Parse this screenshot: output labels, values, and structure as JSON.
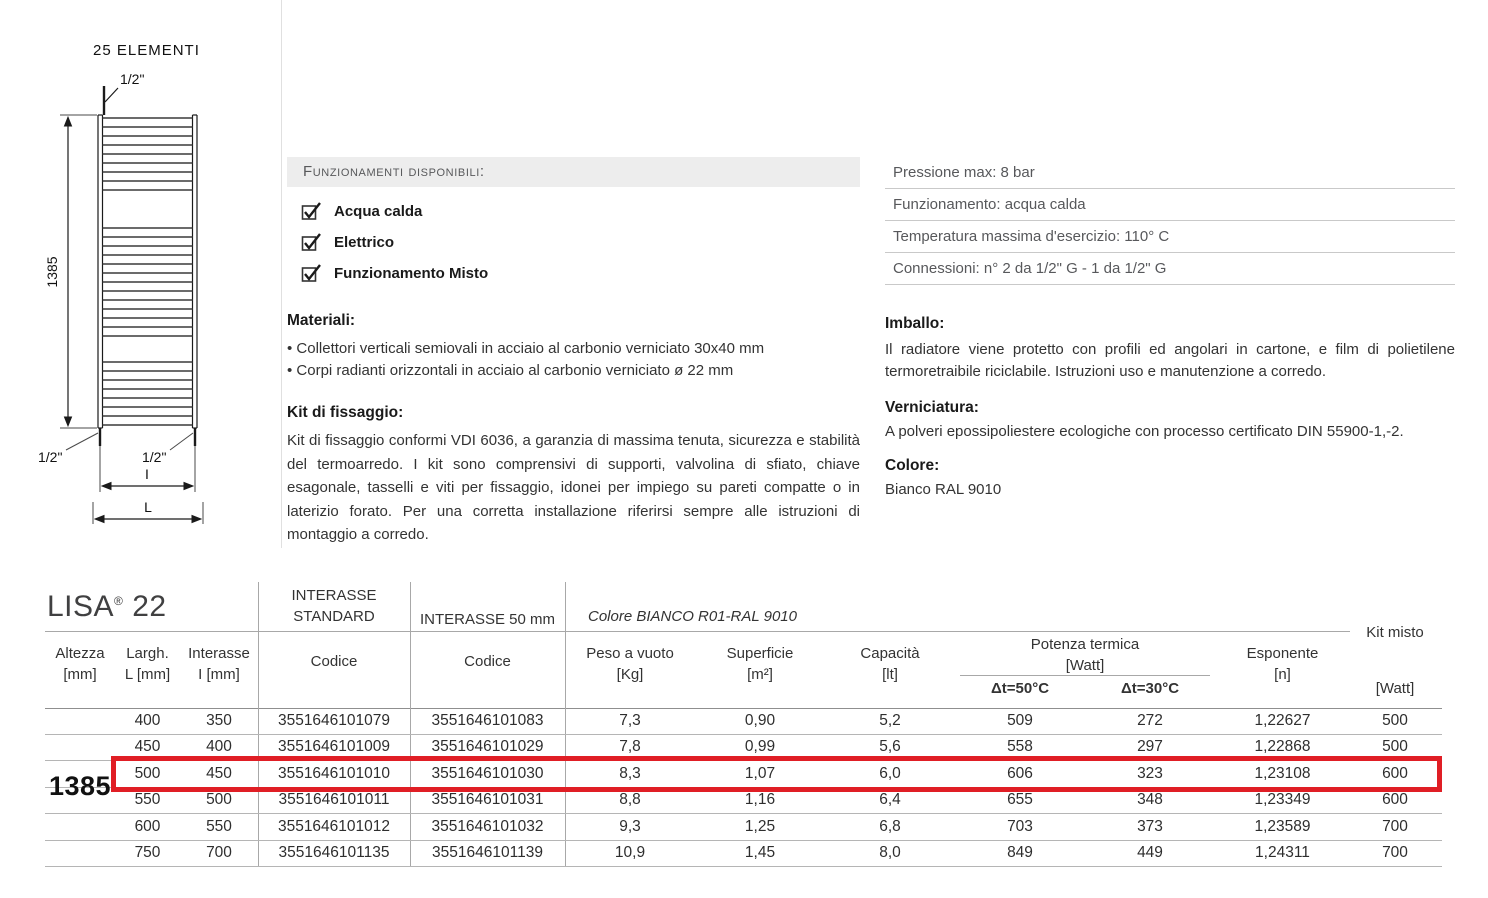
{
  "drawing": {
    "elements_label": "25 ELEMENTI",
    "conn_top": "1/2\"",
    "height": "1385",
    "conn_bottom_left": "1/2\"",
    "conn_bottom_right": "1/2\"",
    "interasse": "I",
    "width": "L"
  },
  "functions": {
    "header": "Funzionamenti disponibili:",
    "items": [
      {
        "label": "Acqua calda"
      },
      {
        "label": "Elettrico"
      },
      {
        "label": "Funzionamento Misto"
      }
    ]
  },
  "materials": {
    "title": "Materiali:",
    "items": [
      "• Collettori verticali semiovali in acciaio al carbonio verniciato 30x40 mm",
      "• Corpi radianti orizzontali in acciaio al carbonio verniciato ø 22 mm"
    ]
  },
  "fixing_kit": {
    "title": "Kit di fissaggio:",
    "body": "Kit di fissaggio conformi VDI 6036, a garanzia di massima tenuta, sicurezza e stabilità del termoarredo. I kit sono comprensivi di supporti, valvolina di sfiato, chiave esagonale, tasselli e viti per fissaggio, idonei per impiego su pareti compatte o in laterizio forato. Per una corretta installazione riferirsi sempre alle istruzioni di montaggio a corredo."
  },
  "specs": {
    "rows": [
      "Pressione max: 8 bar",
      "Funzionamento: acqua calda",
      "Temperatura massima d'esercizio: 110° C",
      "Connessioni:  n° 2 da 1/2\" G - 1 da 1/2\" G"
    ]
  },
  "packaging": {
    "title": "Imballo:",
    "body": "Il radiatore viene protetto con profili ed angolari in cartone, e film di polietilene termoretraibile riciclabile. Istruzioni uso e manutenzione a corredo."
  },
  "painting": {
    "title": "Verniciatura:",
    "body": "A polveri epossipoliestere ecologiche con processo certificato DIN 55900-1,-2."
  },
  "color": {
    "title": "Colore:",
    "body": "Bianco RAL 9010"
  },
  "table": {
    "title": {
      "name": "LISA",
      "reg": "®",
      "series": "22"
    },
    "col_altezza": {
      "l1": "Altezza",
      "l2": "[mm]"
    },
    "col_largh": {
      "l1": "Largh.",
      "l2": "L [mm]"
    },
    "col_interasse": {
      "l1": "Interasse",
      "l2": "I [mm]"
    },
    "col_std": {
      "l1": "INTERASSE",
      "l2": "STANDARD",
      "sub": "Codice"
    },
    "col_50": {
      "l1": "INTERASSE 50 mm",
      "sub": "Codice"
    },
    "color_header": "Colore BIANCO R01-RAL 9010",
    "col_peso": {
      "l1": "Peso a vuoto",
      "l2": "[Kg]"
    },
    "col_sup": {
      "l1": "Superficie",
      "l2": "[m²]"
    },
    "col_cap": {
      "l1": "Capacità",
      "l2": "[lt]"
    },
    "col_potenza": {
      "l1": "Potenza termica",
      "l2": "[Watt]",
      "sub1": "Δt=50°C",
      "sub2": "Δt=30°C"
    },
    "col_esp": {
      "l1": "Esponente",
      "l2": "[n]"
    },
    "col_kit": {
      "l1": "Kit misto",
      "l2": "[Watt]"
    },
    "altezza_value": "1385",
    "highlight_index": 2,
    "highlight_color": "#e01e25",
    "rows": [
      [
        "400",
        "350",
        "3551646101079",
        "3551646101083",
        "7,3",
        "0,90",
        "5,2",
        "509",
        "272",
        "1,22627",
        "500"
      ],
      [
        "450",
        "400",
        "3551646101009",
        "3551646101029",
        "7,8",
        "0,99",
        "5,6",
        "558",
        "297",
        "1,22868",
        "500"
      ],
      [
        "500",
        "450",
        "3551646101010",
        "3551646101030",
        "8,3",
        "1,07",
        "6,0",
        "606",
        "323",
        "1,23108",
        "600"
      ],
      [
        "550",
        "500",
        "3551646101011",
        "3551646101031",
        "8,8",
        "1,16",
        "6,4",
        "655",
        "348",
        "1,23349",
        "600"
      ],
      [
        "600",
        "550",
        "3551646101012",
        "3551646101032",
        "9,3",
        "1,25",
        "6,8",
        "703",
        "373",
        "1,23589",
        "700"
      ],
      [
        "750",
        "700",
        "3551646101135",
        "3551646101139",
        "10,9",
        "1,45",
        "8,0",
        "849",
        "449",
        "1,24311",
        "700"
      ]
    ]
  }
}
